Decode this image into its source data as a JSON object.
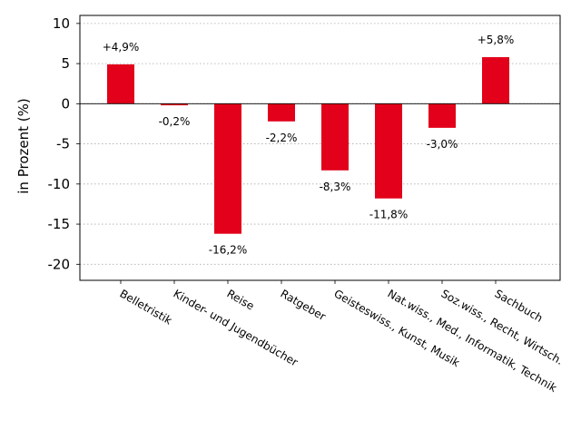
{
  "chart_data": {
    "type": "bar",
    "title": "",
    "xlabel": "",
    "ylabel": "in Prozent (%)",
    "ylim": [
      -22,
      11
    ],
    "yticks": [
      10,
      5,
      0,
      -5,
      -10,
      -15,
      -20
    ],
    "ytick_labels": [
      "10",
      "5",
      "0",
      "-5",
      "-10",
      "-15",
      "-20"
    ],
    "grid": "horizontal dotted",
    "bar_color": "#e2001a",
    "categories": [
      "Belletristik",
      "Kinder- und Jugendbücher",
      "Reise",
      "Ratgeber",
      "Geisteswiss., Kunst, Musik",
      "Nat.wiss., Med., Informatik, Technik",
      "Soz.wiss., Recht, Wirtsch.",
      "Sachbuch"
    ],
    "values": [
      4.9,
      -0.2,
      -16.2,
      -2.2,
      -8.3,
      -11.8,
      -3.0,
      5.8
    ],
    "data_labels": [
      "+4,9%",
      "-0,2%",
      "-16,2%",
      "-2,2%",
      "-8,3%",
      "-11,8%",
      "-3,0%",
      "+5,8%"
    ]
  }
}
